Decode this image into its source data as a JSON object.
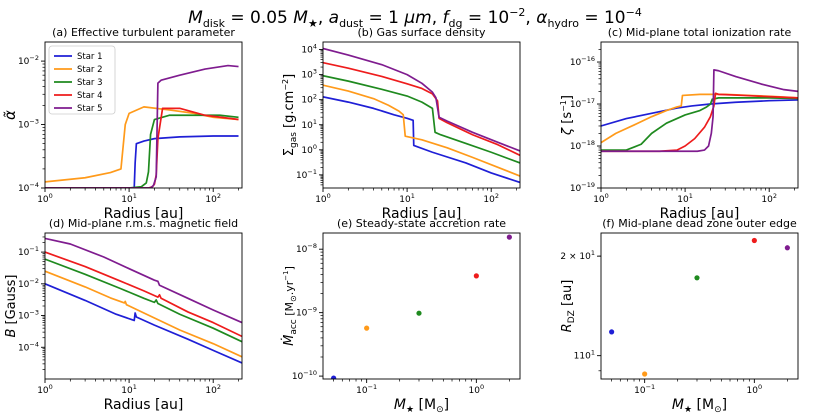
{
  "suptitle": "M_disk = 0.05 M★, a_dust = 1 μm, f_dg = 10⁻², α_hydro = 10⁻⁴",
  "suptitle_parts": [
    "M",
    "disk",
    " = 0.05 ",
    "M",
    "★",
    ", ",
    "a",
    "dust",
    " = 1 ",
    "μm",
    ", ",
    "f",
    "dg",
    " = 10",
    "−2",
    ", ",
    "α",
    "hydro",
    " = 10",
    "−4"
  ],
  "colors": {
    "Star 1": "#1f1fd6",
    "Star 2": "#ff9a1a",
    "Star 3": "#1f8a1f",
    "Star 4": "#ee1c1c",
    "Star 5": "#7f1c8f"
  },
  "chart_data": [
    {
      "id": "a",
      "type": "line",
      "xscale": "log",
      "yscale": "log",
      "title": "(a) Effective turbulent parameter",
      "xlabel": "Radius [au]",
      "ylabel": "α̃",
      "xlim": [
        1,
        220
      ],
      "ylim": [
        0.0001,
        0.02
      ],
      "xticks": [
        {
          "v": 1,
          "m": "0"
        },
        {
          "v": 10,
          "m": "1"
        },
        {
          "v": 100,
          "m": "2"
        }
      ],
      "yticks": [
        {
          "v": 0.0001,
          "m": "−4"
        },
        {
          "v": 0.001,
          "m": "−3"
        },
        {
          "v": 0.01,
          "m": "−2"
        }
      ],
      "legend": {
        "loc": "upper-left",
        "entries": [
          "Star 1",
          "Star 2",
          "Star 3",
          "Star 4",
          "Star 5"
        ]
      },
      "series": [
        {
          "name": "Star 1",
          "x": [
            1,
            11.5,
            11.8,
            12.2,
            15,
            20,
            40,
            100,
            200
          ],
          "y": [
            0.0001,
            0.0001,
            0.00025,
            0.0005,
            0.00055,
            0.0006,
            0.00064,
            0.00066,
            0.00066
          ]
        },
        {
          "name": "Star 2",
          "x": [
            1,
            3,
            6,
            8,
            9,
            10,
            15,
            30,
            60,
            100,
            200
          ],
          "y": [
            0.000125,
            0.000145,
            0.000175,
            0.0002,
            0.001,
            0.0015,
            0.0019,
            0.0017,
            0.0015,
            0.0013,
            0.0012
          ]
        },
        {
          "name": "Star 3",
          "x": [
            1,
            10,
            14,
            16,
            17,
            18,
            20,
            30,
            60,
            120,
            200
          ],
          "y": [
            0.0001,
            0.0001,
            0.000105,
            0.00012,
            0.00018,
            0.0007,
            0.0012,
            0.0014,
            0.0014,
            0.0014,
            0.0013
          ]
        },
        {
          "name": "Star 4",
          "x": [
            1,
            15,
            17,
            19,
            20,
            21,
            22,
            25,
            40,
            80,
            200
          ],
          "y": [
            0.0001,
            0.0001,
            0.0001,
            0.000105,
            0.000115,
            0.00016,
            0.0006,
            0.0018,
            0.0018,
            0.0014,
            0.0012
          ]
        },
        {
          "name": "Star 5",
          "x": [
            1,
            18,
            19.5,
            21,
            22,
            24,
            40,
            80,
            150,
            200
          ],
          "y": [
            0.0001,
            0.0001,
            0.00011,
            0.00015,
            0.0045,
            0.005,
            0.006,
            0.0075,
            0.0085,
            0.0082
          ]
        }
      ]
    },
    {
      "id": "b",
      "type": "line",
      "xscale": "log",
      "yscale": "log",
      "title": "(b) Gas surface density",
      "xlabel": "Radius [au]",
      "ylabel": "Σgas [g.cm⁻²]",
      "xlim": [
        1,
        220
      ],
      "ylim": [
        0.03,
        20000
      ],
      "xticks": [
        {
          "v": 1,
          "m": "0"
        },
        {
          "v": 10,
          "m": "1"
        },
        {
          "v": 100,
          "m": "2"
        }
      ],
      "yticks": [
        {
          "v": 0.1,
          "m": "−1"
        },
        {
          "v": 1,
          "m": "0"
        },
        {
          "v": 10,
          "m": "1"
        },
        {
          "v": 100,
          "m": "2"
        },
        {
          "v": 1000,
          "m": "3"
        },
        {
          "v": 10000,
          "m": "4"
        }
      ],
      "series": [
        {
          "name": "Star 1",
          "x": [
            1,
            2,
            4,
            7,
            10,
            11.8,
            12,
            20,
            50,
            100,
            220
          ],
          "y": [
            130,
            80,
            45,
            25,
            18,
            15,
            1.5,
            0.8,
            0.3,
            0.12,
            0.05
          ]
        },
        {
          "name": "Star 2",
          "x": [
            1,
            2,
            4,
            6,
            8,
            9,
            9.5,
            15,
            30,
            60,
            120,
            220
          ],
          "y": [
            380,
            220,
            110,
            60,
            35,
            25,
            3.5,
            2.5,
            1.2,
            0.5,
            0.2,
            0.09
          ]
        },
        {
          "name": "Star 3",
          "x": [
            1,
            2,
            5,
            10,
            15,
            20,
            21.5,
            25,
            50,
            100,
            220
          ],
          "y": [
            900,
            550,
            260,
            140,
            80,
            45,
            5,
            4,
            1.8,
            0.8,
            0.3
          ]
        },
        {
          "name": "Star 4",
          "x": [
            1,
            2,
            5,
            10,
            15,
            20,
            23,
            24,
            30,
            60,
            120,
            220
          ],
          "y": [
            3000,
            1800,
            850,
            430,
            280,
            170,
            90,
            18,
            12,
            4,
            1.6,
            0.6
          ]
        },
        {
          "name": "Star 5",
          "x": [
            1,
            2,
            5,
            10,
            15,
            20,
            22,
            24,
            30,
            60,
            120,
            220
          ],
          "y": [
            11000,
            6000,
            2500,
            1000,
            450,
            200,
            120,
            20,
            14,
            5,
            2,
            0.9
          ]
        }
      ]
    },
    {
      "id": "c",
      "type": "line",
      "xscale": "log",
      "yscale": "log",
      "title": "(c) Mid-plane total ionization rate",
      "xlabel": "Radius [au]",
      "ylabel": "ζ [s⁻¹]",
      "xlim": [
        1,
        220
      ],
      "ylim": [
        1e-19,
        3e-16
      ],
      "xticks": [
        {
          "v": 1,
          "m": "0"
        },
        {
          "v": 10,
          "m": "1"
        },
        {
          "v": 100,
          "m": "2"
        }
      ],
      "yticks": [
        {
          "v": 1e-19,
          "m": "−19"
        },
        {
          "v": 1e-18,
          "m": "−18"
        },
        {
          "v": 1e-17,
          "m": "−17"
        },
        {
          "v": 1e-16,
          "m": "−16"
        }
      ],
      "series": [
        {
          "name": "Star 1",
          "x": [
            1,
            2,
            4,
            8,
            12,
            20,
            40,
            100,
            220
          ],
          "y": [
            3e-18,
            4.5e-18,
            6e-18,
            8e-18,
            9e-18,
            1e-17,
            1.1e-17,
            1.2e-17,
            1.25e-17
          ]
        },
        {
          "name": "Star 2",
          "x": [
            1,
            1.5,
            2.5,
            4,
            6,
            8,
            9,
            9.3,
            15,
            30,
            60,
            120,
            220
          ],
          "y": [
            1.2e-18,
            2e-18,
            3.2e-18,
            5e-18,
            7e-18,
            8.5e-18,
            9e-18,
            1.6e-17,
            1.7e-17,
            1.7e-17,
            1.6e-17,
            1.5e-17,
            1.4e-17
          ]
        },
        {
          "name": "Star 3",
          "x": [
            1,
            2,
            3,
            4,
            6,
            10,
            15,
            18,
            20,
            21,
            25,
            50,
            100,
            220
          ],
          "y": [
            8e-19,
            8e-19,
            1.1e-18,
            2e-18,
            3.5e-18,
            5.5e-18,
            7e-18,
            8.5e-18,
            1e-17,
            1.3e-17,
            1.4e-17,
            1.4e-17,
            1.4e-17,
            1.35e-17
          ]
        },
        {
          "name": "Star 4",
          "x": [
            1,
            5,
            8,
            10,
            13,
            17,
            20,
            22,
            23,
            25,
            50,
            100,
            220
          ],
          "y": [
            7.5e-19,
            7.5e-19,
            8e-19,
            1e-18,
            1.5e-18,
            2.8e-18,
            5e-18,
            9e-18,
            1.8e-17,
            1.7e-17,
            1.6e-17,
            1.5e-17,
            1.4e-17
          ]
        },
        {
          "name": "Star 5",
          "x": [
            1,
            10,
            14,
            17,
            19,
            20.5,
            21.5,
            22,
            25,
            40,
            80,
            150,
            220
          ],
          "y": [
            7.5e-19,
            7.5e-19,
            7.5e-19,
            8e-19,
            1e-18,
            2e-18,
            5e-18,
            6.5e-17,
            6.2e-17,
            4.5e-17,
            3e-17,
            2.2e-17,
            2e-17
          ]
        }
      ]
    },
    {
      "id": "d",
      "type": "line",
      "xscale": "log",
      "yscale": "log",
      "title": "(d) Mid-plane r.m.s. magnetic field",
      "xlabel": "Radius [au]",
      "ylabel": "B [Gauss]",
      "xlim": [
        1,
        220
      ],
      "ylim": [
        1e-05,
        0.4
      ],
      "xticks": [
        {
          "v": 1,
          "m": "0"
        },
        {
          "v": 10,
          "m": "1"
        },
        {
          "v": 100,
          "m": "2"
        }
      ],
      "yticks": [
        {
          "v": 0.0001,
          "m": "−4"
        },
        {
          "v": 0.001,
          "m": "−3"
        },
        {
          "v": 0.01,
          "m": "−2"
        },
        {
          "v": 0.1,
          "m": "−1"
        }
      ],
      "series": [
        {
          "name": "Star 1",
          "x": [
            1,
            3,
            7,
            11.5,
            11.8,
            12.2,
            20,
            50,
            100,
            220
          ],
          "y": [
            0.01,
            0.003,
            0.0011,
            0.0007,
            0.0012,
            0.0009,
            0.0005,
            0.00018,
            8e-05,
            3.2e-05
          ]
        },
        {
          "name": "Star 2",
          "x": [
            1,
            3,
            6,
            8.8,
            9,
            9.3,
            15,
            40,
            100,
            220
          ],
          "y": [
            0.025,
            0.008,
            0.0036,
            0.0025,
            0.0028,
            0.0022,
            0.0012,
            0.00035,
            0.00013,
            5e-05
          ]
        },
        {
          "name": "Star 3",
          "x": [
            1,
            3,
            8,
            15,
            20,
            21,
            22,
            40,
            100,
            220
          ],
          "y": [
            0.06,
            0.02,
            0.007,
            0.0035,
            0.0026,
            0.0031,
            0.0024,
            0.0011,
            0.0004,
            0.00015
          ]
        },
        {
          "name": "Star 4",
          "x": [
            1,
            3,
            8,
            15,
            22,
            23,
            24,
            50,
            100,
            220
          ],
          "y": [
            0.1,
            0.035,
            0.012,
            0.006,
            0.0038,
            0.0045,
            0.0035,
            0.0013,
            0.0006,
            0.00022
          ]
        },
        {
          "name": "Star 5",
          "x": [
            1,
            2,
            5,
            10,
            20,
            22,
            23,
            50,
            100,
            220
          ],
          "y": [
            0.27,
            0.18,
            0.07,
            0.03,
            0.013,
            0.012,
            0.009,
            0.0035,
            0.0015,
            0.0006
          ]
        }
      ]
    },
    {
      "id": "e",
      "type": "scatter",
      "xscale": "log",
      "yscale": "log",
      "title": "(e) Steady-state accretion rate",
      "xlabel": "M★ [M⊙]",
      "ylabel": "Ṁacc [M⊙.yr⁻¹]",
      "xlim": [
        0.04,
        2.5
      ],
      "ylim": [
        9e-11,
        1.8e-08
      ],
      "xticks": [
        {
          "v": 0.1,
          "m": "−1"
        },
        {
          "v": 1,
          "m": "0"
        }
      ],
      "yticks": [
        {
          "v": 1e-10,
          "m": "−10"
        },
        {
          "v": 1e-09,
          "m": "−9"
        },
        {
          "v": 1e-08,
          "m": "−8"
        }
      ],
      "series": [
        {
          "name": "Star 1",
          "x": [
            0.05
          ],
          "y": [
            9.3e-11
          ]
        },
        {
          "name": "Star 2",
          "x": [
            0.1
          ],
          "y": [
            5.7e-10
          ]
        },
        {
          "name": "Star 3",
          "x": [
            0.3
          ],
          "y": [
            9.8e-10
          ]
        },
        {
          "name": "Star 4",
          "x": [
            1
          ],
          "y": [
            3.8e-09
          ]
        },
        {
          "name": "Star 5",
          "x": [
            2
          ],
          "y": [
            1.55e-08
          ]
        }
      ]
    },
    {
      "id": "f",
      "type": "scatter",
      "xscale": "log",
      "yscale": "log",
      "title": "(f) Mid-plane dead zone outer edge",
      "xlabel": "M★ [M⊙]",
      "ylabel": "RDZ [au]",
      "xlim": [
        0.04,
        2.5
      ],
      "ylim": [
        8.5,
        23.5
      ],
      "xticks": [
        {
          "v": 0.1,
          "m": "−1"
        },
        {
          "v": 1,
          "m": "0"
        }
      ],
      "yticks": [
        {
          "v": 10,
          "m": "1",
          "c": "1"
        },
        {
          "v": 20,
          "m": "1",
          "c": "2 × "
        }
      ],
      "series": [
        {
          "name": "Star 1",
          "x": [
            0.05
          ],
          "y": [
            11.8
          ]
        },
        {
          "name": "Star 2",
          "x": [
            0.1
          ],
          "y": [
            8.8
          ]
        },
        {
          "name": "Star 3",
          "x": [
            0.3
          ],
          "y": [
            17.2
          ]
        },
        {
          "name": "Star 4",
          "x": [
            1
          ],
          "y": [
            22.3
          ]
        },
        {
          "name": "Star 5",
          "x": [
            2
          ],
          "y": [
            21.2
          ]
        }
      ]
    }
  ]
}
